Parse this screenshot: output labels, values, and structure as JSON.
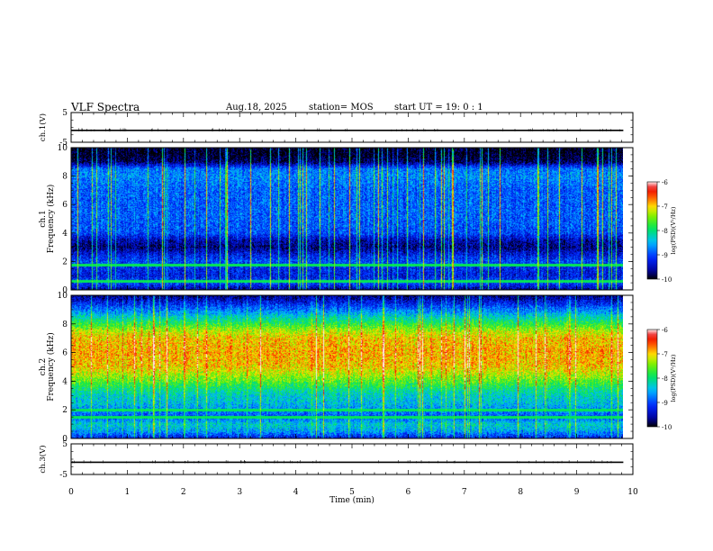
{
  "header": {
    "title": "VLF Spectra",
    "date": "Aug.18, 2025",
    "station": "station= MOS",
    "start": "start  UT =   19: 0  : 1"
  },
  "chart_data": [
    {
      "type": "line",
      "panel": "ch1-voltage",
      "ylabel": "ch.1(V)",
      "ylim": [
        -5,
        5
      ],
      "yticks": [
        "5",
        "-5"
      ],
      "x": [
        0,
        9.83
      ],
      "values": [
        -1,
        -1
      ]
    },
    {
      "type": "heatmap",
      "panel": "ch1-spectrogram",
      "ylabel_lines": [
        "ch.1",
        "Frequency (kHz)"
      ],
      "ylim": [
        0,
        10
      ],
      "yticks": [
        "0",
        "2",
        "4",
        "6",
        "8",
        "10"
      ],
      "xlim": [
        0,
        10
      ],
      "data_end_min": 9.83,
      "colorbar": {
        "label": "log(PSD)(V²/Hz)",
        "ticks": [
          "-6",
          "-7",
          "-8",
          "-9",
          "-10"
        ],
        "range": [
          -10,
          -6
        ]
      },
      "baseline_log_psd_by_freq_khz": {
        "freq": [
          0,
          0.5,
          1,
          1.5,
          2,
          2.5,
          3,
          3.5,
          4,
          5,
          6,
          7,
          8,
          8.5,
          9,
          9.5,
          10
        ],
        "value": [
          -9.6,
          -9.0,
          -9.3,
          -9.2,
          -9.0,
          -9.3,
          -9.7,
          -9.5,
          -9.0,
          -8.9,
          -8.9,
          -8.9,
          -8.7,
          -8.8,
          -9.8,
          -10,
          -10
        ]
      },
      "lines_khz": [
        1.75,
        0.6
      ]
    },
    {
      "type": "heatmap",
      "panel": "ch2-spectrogram",
      "ylabel_lines": [
        "ch.2",
        "Frequency (kHz)"
      ],
      "ylim": [
        0,
        10
      ],
      "yticks": [
        "0",
        "2",
        "4",
        "6",
        "8",
        "10"
      ],
      "xlim": [
        0,
        10
      ],
      "data_end_min": 9.83,
      "colorbar": {
        "label": "log(PSD)(V²/Hz)",
        "ticks": [
          "-6",
          "-7",
          "-8",
          "-9",
          "-10"
        ],
        "range": [
          -10,
          -6
        ]
      },
      "baseline_log_psd_by_freq_khz": {
        "freq": [
          0,
          0.5,
          1,
          1.5,
          2,
          2.5,
          3,
          3.5,
          4,
          4.5,
          5,
          6,
          7,
          7.5,
          8,
          8.5,
          9,
          9.5,
          10
        ],
        "value": [
          -9.3,
          -8.6,
          -8.3,
          -9.0,
          -8.7,
          -8.4,
          -8.3,
          -8.0,
          -7.6,
          -7.3,
          -7.0,
          -6.9,
          -7.0,
          -7.3,
          -7.8,
          -8.3,
          -8.8,
          -9.3,
          -9.7
        ]
      },
      "lines_khz": [
        1.5,
        2.0
      ]
    },
    {
      "type": "line",
      "panel": "ch3-voltage",
      "ylabel": "ch.3(V)",
      "ylim": [
        -5,
        5
      ],
      "yticks": [
        "5",
        "-5"
      ],
      "x": [
        0,
        9.83
      ],
      "values": [
        -1,
        -1
      ]
    }
  ],
  "xaxis": {
    "label": "Time  (min)",
    "ticks": [
      "0",
      "1",
      "2",
      "3",
      "4",
      "5",
      "6",
      "7",
      "8",
      "9",
      "10"
    ],
    "xlim": [
      0,
      10
    ]
  },
  "colors": {
    "axis": "#000000",
    "background": "#ffffff"
  }
}
